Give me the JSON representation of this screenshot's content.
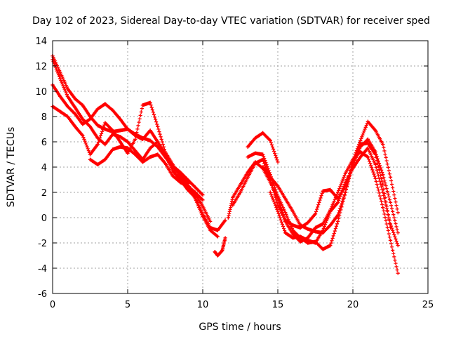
{
  "chart_data": {
    "type": "scatter",
    "title": "Day 102 of 2023, Sidereal Day-to-day VTEC variation (SDTVAR) for receiver sped",
    "xlabel": "GPS time / hours",
    "ylabel": "SDTVAR / TECUs",
    "xlim": [
      0,
      25
    ],
    "ylim": [
      -6,
      14
    ],
    "xticks": [
      0,
      5,
      10,
      15,
      20,
      25
    ],
    "yticks": [
      -6,
      -4,
      -2,
      0,
      2,
      4,
      6,
      8,
      10,
      12,
      14
    ],
    "xtick_labels": [
      "0",
      "5",
      "10",
      "15",
      "20",
      "25"
    ],
    "ytick_labels": [
      "-6",
      "-4",
      "-2",
      "0",
      "2",
      "4",
      "6",
      "8",
      "10",
      "12",
      "14"
    ],
    "grid": true,
    "marker": "+",
    "color": "#ff0000",
    "series": [
      {
        "name": "s1",
        "x": [
          0,
          0.5,
          1,
          1.5,
          2,
          2.5,
          3,
          3.5,
          4,
          4.5,
          5,
          5.5,
          6,
          6.5,
          7,
          7.5,
          8,
          8.5,
          9,
          9.5,
          10,
          10.5,
          11
        ],
        "y": [
          12.8,
          11.5,
          10.2,
          9.4,
          8.9,
          8.0,
          7.3,
          7.0,
          6.8,
          6.9,
          7.0,
          6.6,
          6.3,
          6.1,
          5.6,
          4.8,
          4.0,
          3.4,
          2.7,
          1.5,
          0.1,
          -1.0,
          -1.5
        ]
      },
      {
        "name": "s2",
        "x": [
          0,
          0.5,
          1,
          1.5,
          2,
          2.5,
          3,
          3.5,
          4,
          4.5,
          5,
          5.5,
          6,
          6.5,
          7,
          7.5,
          8,
          8.5,
          9,
          9.5,
          10,
          10.5,
          11,
          11.5
        ],
        "y": [
          12.5,
          11.0,
          9.6,
          8.7,
          7.8,
          7.2,
          6.3,
          5.8,
          6.6,
          6.4,
          6.0,
          5.3,
          4.6,
          5.5,
          6.0,
          5.0,
          3.7,
          3.0,
          2.2,
          1.6,
          0.3,
          -0.8,
          -1.0,
          -0.2
        ]
      },
      {
        "name": "s3",
        "x": [
          0,
          0.5,
          1,
          1.5,
          2,
          2.5,
          3,
          3.5,
          4,
          4.5,
          5,
          5.5,
          6,
          6.5,
          7,
          7.5,
          8,
          8.5,
          9,
          9.5,
          10
        ],
        "y": [
          10.5,
          9.6,
          8.8,
          8.2,
          7.4,
          7.8,
          8.6,
          9.0,
          8.5,
          7.8,
          7.0,
          6.5,
          6.2,
          6.9,
          6.0,
          4.9,
          4.1,
          3.6,
          3.0,
          2.4,
          1.8
        ]
      },
      {
        "name": "s4",
        "x": [
          0,
          0.5,
          1,
          1.5,
          2,
          2.5,
          3,
          3.5,
          4,
          4.5,
          5,
          5.5,
          6,
          6.5,
          7,
          7.5,
          8,
          8.5,
          9,
          9.5,
          10,
          10.5
        ],
        "y": [
          8.8,
          8.4,
          8.0,
          7.2,
          6.5,
          5.0,
          5.8,
          7.5,
          6.9,
          6.0,
          5.1,
          6.2,
          8.9,
          9.1,
          7.2,
          5.2,
          4.2,
          3.2,
          2.4,
          1.9,
          0.9,
          -0.3
        ]
      },
      {
        "name": "s5",
        "x": [
          2.5,
          3,
          3.5,
          4,
          4.5,
          5,
          5.5,
          6,
          6.5,
          7,
          7.5,
          8,
          8.5,
          9,
          9.5,
          10
        ],
        "y": [
          4.6,
          4.2,
          4.6,
          5.4,
          5.6,
          5.5,
          5.0,
          4.4,
          4.8,
          5.0,
          4.3,
          3.3,
          2.8,
          2.5,
          2.0,
          1.4
        ]
      },
      {
        "name": "s6",
        "x": [
          10.8,
          11.0,
          11.3,
          11.5
        ],
        "y": [
          -2.7,
          -3.0,
          -2.6,
          -1.6
        ]
      },
      {
        "name": "s7",
        "x": [
          11.7,
          12,
          12.5,
          13,
          13.5,
          14,
          14.5,
          15,
          15.5,
          16,
          16.5,
          17,
          17.5,
          18,
          18.5,
          19,
          19.5,
          20,
          20.5,
          21,
          21.5,
          22,
          22.5,
          23
        ],
        "y": [
          0.0,
          1.6,
          2.6,
          3.6,
          4.4,
          3.9,
          2.8,
          1.5,
          -0.3,
          -1.3,
          -1.9,
          -1.6,
          -0.8,
          -0.5,
          0.6,
          2.0,
          3.5,
          4.6,
          5.2,
          4.8,
          3.1,
          0.8,
          -1.8,
          -4.4
        ]
      },
      {
        "name": "s8",
        "x": [
          12,
          12.5,
          13,
          13.5,
          14,
          14.5,
          15,
          15.5,
          16,
          16.5,
          17,
          17.5,
          18,
          18.5,
          19,
          19.5,
          20,
          20.5,
          21,
          21.5,
          22,
          22.5,
          23
        ],
        "y": [
          1.0,
          2.0,
          3.2,
          4.3,
          4.6,
          3.0,
          1.0,
          -0.2,
          -0.6,
          -0.8,
          -0.4,
          0.3,
          2.1,
          2.2,
          1.5,
          2.5,
          4.2,
          5.6,
          6.2,
          5.2,
          3.4,
          1.2,
          -1.2
        ]
      },
      {
        "name": "s9",
        "x": [
          13,
          13.5,
          14,
          14.5,
          15,
          15.5,
          16,
          16.5,
          17,
          17.5,
          18,
          18.5,
          19,
          19.5,
          20,
          20.5,
          21,
          21.5,
          22,
          22.5,
          23
        ],
        "y": [
          4.8,
          5.1,
          5.0,
          3.4,
          1.7,
          0.4,
          -1.0,
          -1.6,
          -2.0,
          -1.9,
          -2.5,
          -2.2,
          -0.3,
          2.0,
          4.5,
          6.1,
          7.6,
          6.9,
          5.8,
          3.2,
          0.4
        ]
      },
      {
        "name": "s10",
        "x": [
          13,
          13.5,
          14,
          14.5,
          15
        ],
        "y": [
          5.6,
          6.3,
          6.7,
          6.1,
          4.4
        ]
      },
      {
        "name": "s11",
        "x": [
          14,
          14.5,
          15,
          15.5,
          16,
          16.5,
          17,
          17.5,
          18,
          18.5,
          19,
          19.5,
          20,
          20.5,
          21,
          21.5,
          22,
          22.5
        ],
        "y": [
          4.0,
          3.2,
          2.5,
          1.5,
          0.5,
          -0.6,
          -0.9,
          -1.1,
          -1.2,
          -0.6,
          0.2,
          2.0,
          4.2,
          5.8,
          5.9,
          5.0,
          2.6,
          -0.8
        ]
      },
      {
        "name": "s12",
        "x": [
          14.5,
          15,
          15.5,
          16,
          16.5,
          17,
          17.5,
          18,
          18.5,
          19,
          19.5,
          20,
          20.5,
          21,
          21.5,
          22,
          22.5,
          23
        ],
        "y": [
          2.0,
          0.5,
          -1.2,
          -1.6,
          -1.5,
          -1.8,
          -2.0,
          -1.0,
          0.5,
          1.2,
          2.8,
          3.9,
          4.8,
          5.5,
          4.2,
          2.0,
          -0.5,
          -2.2
        ]
      }
    ]
  }
}
